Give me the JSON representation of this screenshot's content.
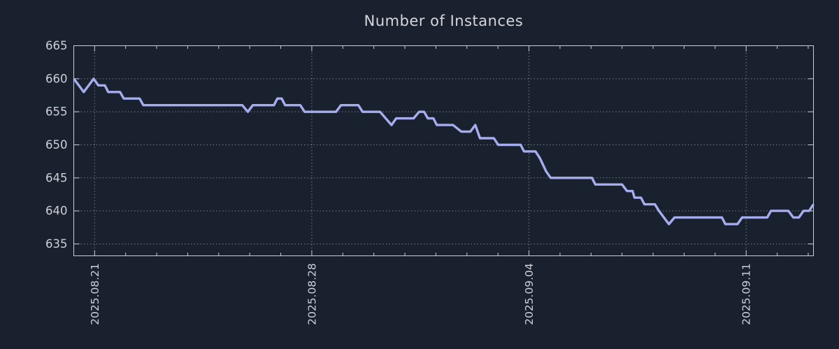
{
  "page": {
    "background_color": "#1a212e"
  },
  "chart_data": {
    "type": "line",
    "title": "Number of Instances",
    "xlabel": "",
    "ylabel": "",
    "legend": "none",
    "grid": {
      "shown": true,
      "style": "dotted",
      "color": "rgba(198,203,213,0.55)"
    },
    "axis_color": "#c9cdd5",
    "label_color": "#cdd0d6",
    "y_axis": {
      "ticks": [
        635,
        640,
        645,
        650,
        655,
        660,
        665
      ],
      "range": [
        633.2,
        665
      ]
    },
    "x_axis": {
      "tick_labels": [
        "2025.08.21",
        "2025.08.28",
        "2025.09.04",
        "2025.09.11"
      ],
      "tick_day_offsets": [
        0,
        7,
        14,
        21
      ],
      "minor_tick_every_days": 1,
      "range_days": [
        -0.672,
        23.17
      ]
    },
    "series": [
      {
        "name": "instances",
        "color": "#a6adee",
        "points_x_days_value": [
          [
            -0.67,
            660
          ],
          [
            -0.35,
            658
          ],
          [
            -0.03,
            660
          ],
          [
            0.12,
            659
          ],
          [
            0.33,
            659
          ],
          [
            0.44,
            658
          ],
          [
            0.82,
            658
          ],
          [
            0.94,
            657
          ],
          [
            1.45,
            657
          ],
          [
            1.57,
            656
          ],
          [
            4.76,
            656
          ],
          [
            4.94,
            655
          ],
          [
            5.1,
            656
          ],
          [
            5.78,
            656
          ],
          [
            5.89,
            657
          ],
          [
            6.03,
            657
          ],
          [
            6.14,
            656
          ],
          [
            6.63,
            656
          ],
          [
            6.77,
            655
          ],
          [
            7.78,
            655
          ],
          [
            7.94,
            656
          ],
          [
            8.5,
            656
          ],
          [
            8.64,
            655
          ],
          [
            9.2,
            655
          ],
          [
            9.57,
            653
          ],
          [
            9.72,
            654
          ],
          [
            10.28,
            654
          ],
          [
            10.46,
            655
          ],
          [
            10.62,
            655
          ],
          [
            10.74,
            654
          ],
          [
            10.92,
            654
          ],
          [
            11.03,
            653
          ],
          [
            11.55,
            653
          ],
          [
            11.82,
            652
          ],
          [
            12.11,
            652
          ],
          [
            12.27,
            653
          ],
          [
            12.42,
            651
          ],
          [
            12.87,
            651
          ],
          [
            13.01,
            650
          ],
          [
            13.73,
            650
          ],
          [
            13.84,
            649
          ],
          [
            14.21,
            649
          ],
          [
            14.35,
            648
          ],
          [
            14.55,
            646
          ],
          [
            14.7,
            645
          ],
          [
            16.03,
            645
          ],
          [
            16.14,
            644
          ],
          [
            17.0,
            644
          ],
          [
            17.16,
            643
          ],
          [
            17.34,
            643
          ],
          [
            17.4,
            642
          ],
          [
            17.61,
            642
          ],
          [
            17.72,
            641
          ],
          [
            18.06,
            641
          ],
          [
            18.19,
            640
          ],
          [
            18.35,
            639
          ],
          [
            18.51,
            638
          ],
          [
            18.69,
            639
          ],
          [
            20.22,
            639
          ],
          [
            20.33,
            638
          ],
          [
            20.72,
            638
          ],
          [
            20.87,
            639
          ],
          [
            21.68,
            639
          ],
          [
            21.8,
            640
          ],
          [
            22.36,
            640
          ],
          [
            22.52,
            639
          ],
          [
            22.7,
            639
          ],
          [
            22.85,
            640
          ],
          [
            23.03,
            640
          ],
          [
            23.17,
            641
          ]
        ]
      }
    ]
  }
}
